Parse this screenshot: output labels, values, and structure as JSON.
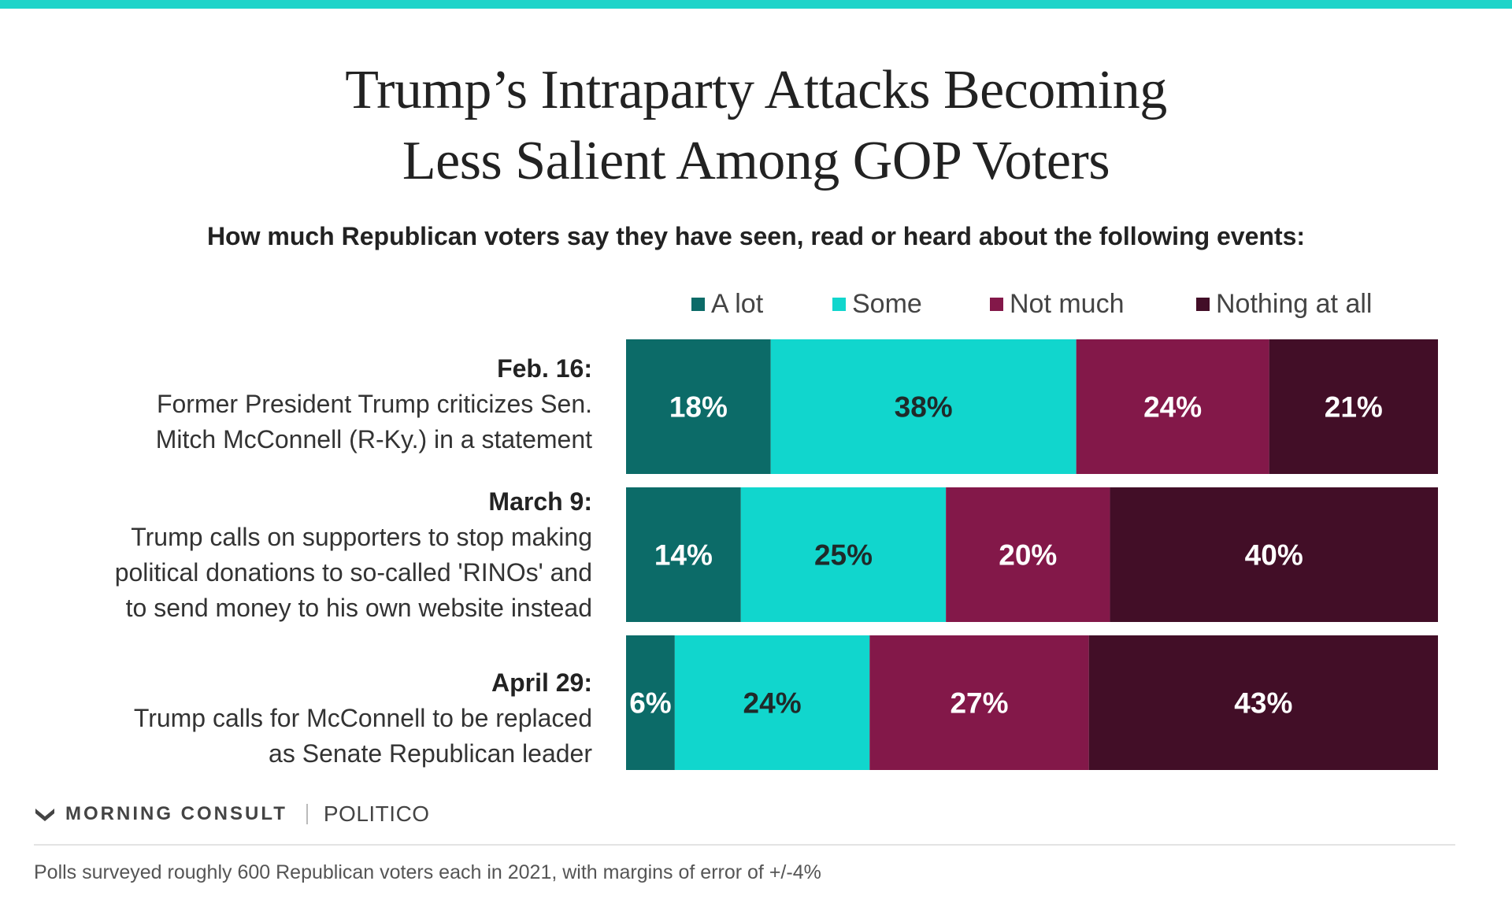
{
  "header": {
    "accent_color": "#1ed4c9",
    "title_line1": "Trump’s Intraparty Attacks Becoming",
    "title_line2": "Less Salient Among GOP Voters",
    "subtitle": "How much Republican voters say they have seen, read or heard about the following events:"
  },
  "legend": [
    {
      "label": "A lot",
      "color": "#0c6b68"
    },
    {
      "label": "Some",
      "color": "#11d6cd"
    },
    {
      "label": "Not much",
      "color": "#831849"
    },
    {
      "label": "Nothing at all",
      "color": "#420e27"
    }
  ],
  "rows": [
    {
      "date": "Feb. 16:",
      "description_lines": [
        "Former President Trump criticizes Sen.",
        "Mitch McConnell (R-Ky.) in a statement"
      ]
    },
    {
      "date": "March 9:",
      "description_lines": [
        "Trump calls on supporters to stop making",
        "political donations to so-called 'RINOs' and",
        "to send money to his own website instead"
      ]
    },
    {
      "date": "April 29:",
      "description_lines": [
        "Trump calls for McConnell to be replaced",
        "as Senate Republican leader"
      ]
    }
  ],
  "chart_data": {
    "type": "bar",
    "orientation": "horizontal",
    "stacked": true,
    "normalized": true,
    "title": "Trump’s Intraparty Attacks Becoming Less Salient Among GOP Voters",
    "subtitle": "How much Republican voters say they have seen, read or heard about the following events:",
    "categories": [
      "Feb. 16",
      "March 9",
      "April 29"
    ],
    "series": [
      {
        "name": "A lot",
        "values": [
          18,
          14,
          6
        ],
        "labels": [
          "18%",
          "14%",
          "6%"
        ],
        "color": "#0c6b68",
        "label_color": "#ffffff"
      },
      {
        "name": "Some",
        "values": [
          38,
          25,
          24
        ],
        "labels": [
          "38%",
          "25%",
          "24%"
        ],
        "color": "#11d6cd",
        "label_color": "#1f2a2a"
      },
      {
        "name": "Not much",
        "values": [
          24,
          20,
          27
        ],
        "labels": [
          "24%",
          "20%",
          "27%"
        ],
        "color": "#831849",
        "label_color": "#ffffff"
      },
      {
        "name": "Nothing at all",
        "values": [
          21,
          40,
          43
        ],
        "labels": [
          "21%",
          "40%",
          "43%"
        ],
        "color": "#420e27",
        "label_color": "#ffffff"
      }
    ],
    "legend_position": "top",
    "grid": false
  },
  "footer": {
    "brand1": "MORNING CONSULT",
    "brand2": "POLITICO",
    "note": "Polls surveyed roughly 600 Republican voters each in 2021, with margins of error of +/-4%"
  }
}
